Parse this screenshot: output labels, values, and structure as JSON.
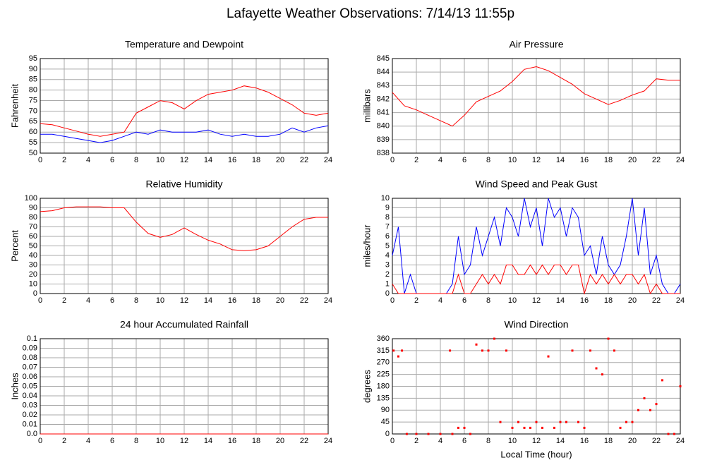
{
  "title": "Lafayette Weather Observations: 7/14/13 11:55p",
  "chart_data": [
    {
      "type": "line",
      "title": "Temperature and Dewpoint",
      "ylabel": "Fahrenheit",
      "x": [
        0,
        1,
        2,
        3,
        4,
        5,
        6,
        7,
        8,
        9,
        10,
        11,
        12,
        13,
        14,
        15,
        16,
        17,
        18,
        19,
        20,
        21,
        22,
        23,
        24
      ],
      "series": [
        {
          "color": "#ff0000",
          "values": [
            64,
            63.5,
            62,
            60.5,
            59,
            58,
            59,
            60,
            69,
            72,
            75,
            74,
            71,
            75,
            78,
            79,
            80,
            82,
            81,
            79,
            76,
            73,
            69,
            68,
            69
          ]
        },
        {
          "color": "#0000ff",
          "values": [
            59,
            59,
            58,
            57,
            56,
            55,
            56,
            58,
            60,
            59,
            61,
            60,
            60,
            60,
            61,
            59,
            58,
            59,
            58,
            58,
            59,
            62,
            60,
            62,
            63
          ]
        }
      ],
      "xlim": [
        0,
        24
      ],
      "xticks": [
        0,
        2,
        4,
        6,
        8,
        10,
        12,
        14,
        16,
        18,
        20,
        22,
        24
      ],
      "ylim": [
        50,
        95
      ],
      "yticks": [
        50,
        55,
        60,
        65,
        70,
        75,
        80,
        85,
        90,
        95
      ],
      "grid": true
    },
    {
      "type": "line",
      "title": "Air Pressure",
      "ylabel": "millibars",
      "x": [
        0,
        1,
        2,
        3,
        4,
        5,
        6,
        7,
        8,
        9,
        10,
        11,
        12,
        13,
        14,
        15,
        16,
        17,
        18,
        19,
        20,
        21,
        22,
        23,
        24
      ],
      "series": [
        {
          "color": "#ff0000",
          "values": [
            842.5,
            841.5,
            841.2,
            840.8,
            840.4,
            840,
            840.8,
            841.8,
            842.2,
            842.6,
            843.3,
            844.2,
            844.4,
            844.1,
            843.6,
            843.1,
            842.4,
            842,
            841.6,
            841.9,
            842.3,
            842.6,
            843.5,
            843.4,
            843.4
          ]
        }
      ],
      "xlim": [
        0,
        24
      ],
      "xticks": [
        0,
        2,
        4,
        6,
        8,
        10,
        12,
        14,
        16,
        18,
        20,
        22,
        24
      ],
      "ylim": [
        838,
        845
      ],
      "yticks": [
        838,
        839,
        840,
        841,
        842,
        843,
        844,
        845
      ],
      "grid": true
    },
    {
      "type": "line",
      "title": "Relative Humidity",
      "ylabel": "Percent",
      "x": [
        0,
        1,
        2,
        3,
        4,
        5,
        6,
        7,
        8,
        9,
        10,
        11,
        12,
        13,
        14,
        15,
        16,
        17,
        18,
        19,
        20,
        21,
        22,
        23,
        24
      ],
      "series": [
        {
          "color": "#ff0000",
          "values": [
            86,
            87,
            90,
            91,
            91,
            91,
            90,
            90,
            75,
            63,
            59,
            62,
            69,
            62,
            56,
            52,
            46,
            45,
            46,
            50,
            60,
            70,
            78,
            80,
            80
          ]
        }
      ],
      "xlim": [
        0,
        24
      ],
      "xticks": [
        0,
        2,
        4,
        6,
        8,
        10,
        12,
        14,
        16,
        18,
        20,
        22,
        24
      ],
      "ylim": [
        0,
        100
      ],
      "yticks": [
        0,
        10,
        20,
        30,
        40,
        50,
        60,
        70,
        80,
        90,
        100
      ],
      "grid": true
    },
    {
      "type": "line",
      "title": "Wind Speed and Peak Gust",
      "ylabel": "miles/hour",
      "x": [
        0,
        0.5,
        1,
        1.5,
        2,
        2.5,
        3,
        3.5,
        4,
        4.5,
        5,
        5.5,
        6,
        6.5,
        7,
        7.5,
        8,
        8.5,
        9,
        9.5,
        10,
        10.5,
        11,
        11.5,
        12,
        12.5,
        13,
        13.5,
        14,
        14.5,
        15,
        15.5,
        16,
        16.5,
        17,
        17.5,
        18,
        18.5,
        19,
        19.5,
        20,
        20.5,
        21,
        21.5,
        22,
        22.5,
        23,
        23.5,
        24
      ],
      "series": [
        {
          "color": "#0000ff",
          "values": [
            4,
            7,
            0,
            2,
            0,
            0,
            0,
            0,
            0,
            0,
            1,
            6,
            2,
            3,
            7,
            4,
            6,
            8,
            5,
            9,
            8,
            6,
            10,
            7,
            9,
            5,
            10,
            8,
            9,
            6,
            9,
            8,
            4,
            5,
            2,
            6,
            3,
            2,
            3,
            6,
            10,
            4,
            9,
            2,
            4,
            1,
            0,
            0,
            1
          ]
        },
        {
          "color": "#ff0000",
          "values": [
            1,
            0,
            0,
            0,
            0,
            0,
            0,
            0,
            0,
            0,
            0,
            2,
            0,
            0,
            1,
            2,
            1,
            2,
            1,
            3,
            3,
            2,
            2,
            3,
            2,
            3,
            2,
            3,
            3,
            2,
            3,
            3,
            0,
            2,
            1,
            2,
            1,
            2,
            1,
            2,
            2,
            1,
            2,
            0,
            1,
            0,
            0,
            0,
            0
          ]
        }
      ],
      "xlim": [
        0,
        24
      ],
      "xticks": [
        0,
        2,
        4,
        6,
        8,
        10,
        12,
        14,
        16,
        18,
        20,
        22,
        24
      ],
      "ylim": [
        0,
        10
      ],
      "yticks": [
        0,
        1,
        2,
        3,
        4,
        5,
        6,
        7,
        8,
        9,
        10
      ],
      "grid": true
    },
    {
      "type": "line",
      "title": "24 hour Accumulated Rainfall",
      "ylabel": "Inches",
      "x": [
        0,
        24
      ],
      "series": [
        {
          "color": "#ff0000",
          "values": [
            0,
            0
          ]
        }
      ],
      "xlim": [
        0,
        24
      ],
      "xticks": [
        0,
        2,
        4,
        6,
        8,
        10,
        12,
        14,
        16,
        18,
        20,
        22,
        24
      ],
      "ylim": [
        0,
        0.1
      ],
      "yticks": [
        {
          "value": 0,
          "label": "0.0"
        },
        0.01,
        0.02,
        0.03,
        0.04,
        0.05,
        0.06,
        0.07,
        0.08,
        0.09,
        0.1
      ],
      "grid": true
    },
    {
      "type": "scatter",
      "title": "Wind Direction",
      "ylabel": "degrees",
      "xlabel": "Local Time (hour)",
      "x": [
        0.1,
        0.5,
        0.8,
        1.2,
        2,
        3,
        4,
        4.8,
        5,
        5.5,
        6,
        6.5,
        7,
        7.5,
        8,
        8.5,
        9,
        9.5,
        10,
        10.5,
        11,
        11.5,
        12,
        12.5,
        13,
        13.5,
        14,
        14.5,
        15,
        15.5,
        16,
        16.5,
        17,
        17.5,
        18,
        18.5,
        19,
        19.5,
        20,
        20.5,
        21,
        21.5,
        22,
        22.5,
        23,
        23.5,
        24
      ],
      "series": [
        {
          "color": "#ff0000",
          "values": [
            315,
            293,
            315,
            0,
            0,
            0,
            0,
            315,
            0,
            23,
            23,
            0,
            338,
            315,
            315,
            360,
            45,
            315,
            23,
            45,
            23,
            23,
            45,
            23,
            293,
            23,
            45,
            45,
            315,
            45,
            23,
            315,
            248,
            225,
            360,
            315,
            23,
            45,
            45,
            90,
            135,
            90,
            113,
            203,
            0,
            0,
            180
          ]
        }
      ],
      "xlim": [
        0,
        24
      ],
      "xticks": [
        0,
        2,
        4,
        6,
        8,
        10,
        12,
        14,
        16,
        18,
        20,
        22,
        24
      ],
      "ylim": [
        0,
        360
      ],
      "yticks": [
        0,
        45,
        90,
        135,
        180,
        225,
        270,
        315,
        360
      ],
      "grid": true
    }
  ]
}
